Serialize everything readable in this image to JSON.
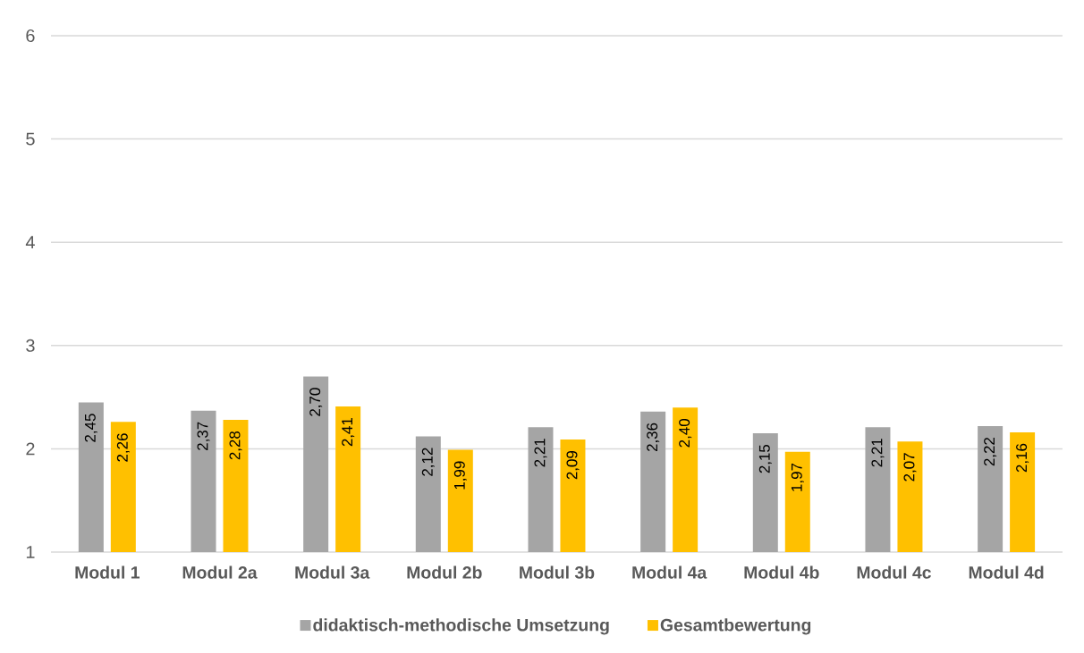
{
  "chart_data": {
    "type": "bar",
    "categories": [
      "Modul 1",
      "Modul 2a",
      "Modul 3a",
      "Modul 2b",
      "Modul 3b",
      "Modul 4a",
      "Modul 4b",
      "Modul 4c",
      "Modul 4d"
    ],
    "series": [
      {
        "name": "didaktisch-methodische Umsetzung",
        "color": "#a5a5a5",
        "values": [
          2.45,
          2.37,
          2.7,
          2.12,
          2.21,
          2.36,
          2.15,
          2.21,
          2.22
        ],
        "value_labels": [
          "2,45",
          "2,37",
          "2,70",
          "2,12",
          "2,21",
          "2,36",
          "2,15",
          "2,21",
          "2,22"
        ]
      },
      {
        "name": "Gesamtbewertung",
        "color": "#ffc000",
        "values": [
          2.26,
          2.28,
          2.41,
          1.99,
          2.09,
          2.4,
          1.97,
          2.07,
          2.16
        ],
        "value_labels": [
          "2,26",
          "2,28",
          "2,41",
          "1,99",
          "2,09",
          "2,40",
          "1,97",
          "2,07",
          "2,16"
        ]
      }
    ],
    "ylim": [
      1,
      6
    ],
    "yticks": [
      1,
      2,
      3,
      4,
      5,
      6
    ],
    "grid": "y",
    "legend": "bottom"
  }
}
